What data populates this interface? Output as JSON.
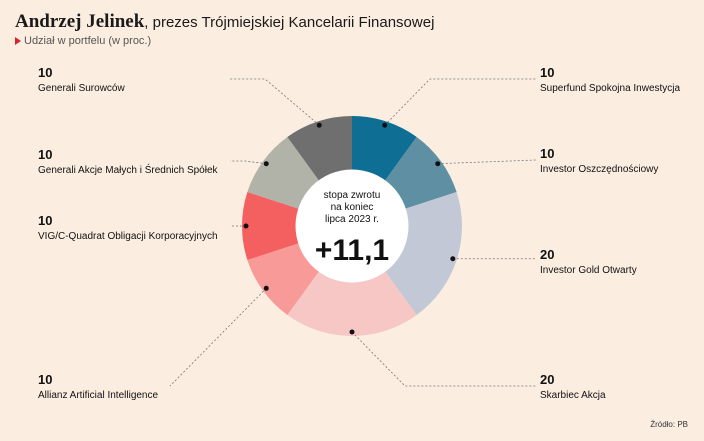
{
  "header": {
    "name": "Andrzej Jelinek",
    "rest": ", prezes Trójmiejskiej Kancelarii Finansowej",
    "subtitle": "Udział w portfelu (w proc.)"
  },
  "center": {
    "line1": "stopa zwrotu",
    "line2": "na koniec",
    "line3": "lipca 2023 r.",
    "value": "+11,1"
  },
  "source": "Źródło: PB",
  "chart_data": {
    "type": "pie",
    "title": "Udział w portfelu (w proc.)",
    "donut": true,
    "center_label": "stopa zwrotu na koniec lipca 2023 r.",
    "center_value": "+11,1",
    "categories": [
      "Superfund Spokojna Inwestycja",
      "Investor Oszczędnościowy",
      "Investor Gold Otwarty",
      "Skarbiec Akcja",
      "Allianz Artificial Intelligence",
      "VIG/C-Quadrat Obligacji Korporacyjnych",
      "Generali Akcje Małych i Średnich Spółek",
      "Generali Surowców"
    ],
    "values": [
      10,
      10,
      20,
      20,
      10,
      10,
      10,
      10
    ],
    "colors": [
      "#0e6e93",
      "#5e8fa3",
      "#c3c8d7",
      "#f6c7c5",
      "#f89a98",
      "#f46060",
      "#b1b3a8",
      "#6f6f6f"
    ]
  }
}
